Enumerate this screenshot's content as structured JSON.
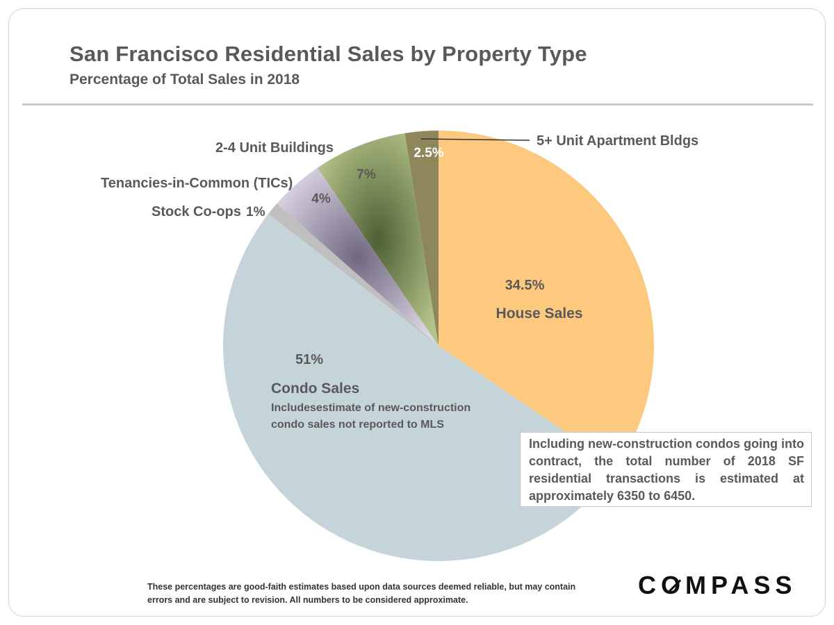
{
  "title": "San Francisco Residential Sales by Property Type",
  "subtitle": "Percentage of Total Sales in 2018",
  "note": "Including new-construction condos going into contract, the total number of 2018 SF residential transactions is estimated at approximately 6350 to 6450.",
  "footnote_line1": "These percentages are good-faith estimates based upon data sources deemed reliable, but may contain",
  "footnote_line2": "errors and are subject to revision. All numbers to be considered approximate.",
  "logo": "COMPASS",
  "chart_data": {
    "type": "pie",
    "start": "12 o'clock, clockwise",
    "slices": [
      {
        "name": "House Sales",
        "value": 34.5,
        "label": "34.5%",
        "color": "#fdc97e"
      },
      {
        "name": "Condo Sales",
        "value": 51,
        "label": "51%",
        "sublabel": [
          "Includesestimate of new-construction",
          "condo sales not reported to MLS"
        ],
        "color": "#c4d4d9"
      },
      {
        "name": "Stock Co-ops",
        "value": 1,
        "label": "1%",
        "color": "#bfbfbf"
      },
      {
        "name": "Tenancies-in-Common (TICs)",
        "value": 4,
        "label": "4%",
        "color": "#d9d2e2"
      },
      {
        "name": "2-4 Unit Buildings",
        "value": 7,
        "label": "7%",
        "color": "#b5c489"
      },
      {
        "name": "5+ Unit Apartment Bldgs",
        "value": 2.5,
        "label": "2.5%",
        "color": "#8e875c"
      }
    ]
  }
}
